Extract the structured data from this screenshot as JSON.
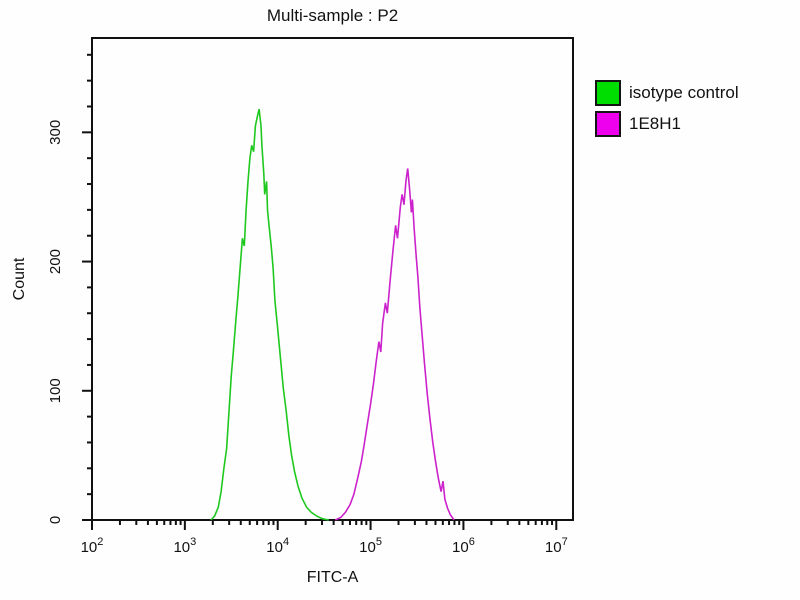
{
  "title": "Multi-sample : P2",
  "legend": {
    "items": [
      {
        "label": "isotype control",
        "color": "#00dd00"
      },
      {
        "label": "1E8H1",
        "color": "#ee00ee"
      }
    ]
  },
  "chart_data": {
    "type": "line",
    "subtype": "flow-cytometry-histogram-overlay",
    "title": "Multi-sample : P2",
    "xlabel": "FITC-A",
    "ylabel": "Count",
    "x_scale": "log10",
    "xlim_log10": [
      2,
      7.18
    ],
    "ylim": [
      0,
      373
    ],
    "x_major_tick_exponents": [
      2,
      3,
      4,
      5,
      6,
      7
    ],
    "y_major_ticks": [
      0,
      100,
      200,
      300
    ],
    "y_minor_step": 20,
    "grid": false,
    "legend_position": "outside-upper-right",
    "axis_color": "#111111",
    "series": [
      {
        "name": "isotype control",
        "color": "#1fc81f",
        "peak_x_approx": 6300,
        "peak_count_approx": 318,
        "points_log10x_count": [
          [
            3.28,
            0
          ],
          [
            3.32,
            3
          ],
          [
            3.36,
            10
          ],
          [
            3.39,
            22
          ],
          [
            3.42,
            40
          ],
          [
            3.45,
            55
          ],
          [
            3.47,
            78
          ],
          [
            3.5,
            112
          ],
          [
            3.52,
            128
          ],
          [
            3.55,
            155
          ],
          [
            3.57,
            172
          ],
          [
            3.6,
            200
          ],
          [
            3.62,
            218
          ],
          [
            3.64,
            212
          ],
          [
            3.66,
            240
          ],
          [
            3.68,
            262
          ],
          [
            3.7,
            280
          ],
          [
            3.72,
            290
          ],
          [
            3.74,
            285
          ],
          [
            3.76,
            305
          ],
          [
            3.78,
            312
          ],
          [
            3.8,
            318
          ],
          [
            3.82,
            305
          ],
          [
            3.83,
            290
          ],
          [
            3.85,
            268
          ],
          [
            3.86,
            252
          ],
          [
            3.88,
            262
          ],
          [
            3.89,
            240
          ],
          [
            3.91,
            225
          ],
          [
            3.93,
            212
          ],
          [
            3.95,
            195
          ],
          [
            3.97,
            170
          ],
          [
            4.0,
            148
          ],
          [
            4.03,
            125
          ],
          [
            4.06,
            102
          ],
          [
            4.09,
            85
          ],
          [
            4.12,
            65
          ],
          [
            4.15,
            50
          ],
          [
            4.18,
            38
          ],
          [
            4.22,
            26
          ],
          [
            4.26,
            17
          ],
          [
            4.31,
            10
          ],
          [
            4.36,
            6
          ],
          [
            4.42,
            3
          ],
          [
            4.48,
            1
          ],
          [
            4.55,
            0
          ]
        ]
      },
      {
        "name": "1E8H1",
        "color": "#cc22cc",
        "peak_x_approx": 250000,
        "peak_count_approx": 272,
        "points_log10x_count": [
          [
            4.62,
            0
          ],
          [
            4.68,
            2
          ],
          [
            4.73,
            6
          ],
          [
            4.78,
            12
          ],
          [
            4.82,
            20
          ],
          [
            4.86,
            32
          ],
          [
            4.9,
            45
          ],
          [
            4.93,
            58
          ],
          [
            4.96,
            72
          ],
          [
            5.0,
            90
          ],
          [
            5.03,
            105
          ],
          [
            5.06,
            122
          ],
          [
            5.09,
            138
          ],
          [
            5.11,
            130
          ],
          [
            5.13,
            152
          ],
          [
            5.16,
            168
          ],
          [
            5.18,
            160
          ],
          [
            5.21,
            185
          ],
          [
            5.24,
            208
          ],
          [
            5.27,
            228
          ],
          [
            5.29,
            218
          ],
          [
            5.32,
            242
          ],
          [
            5.34,
            252
          ],
          [
            5.36,
            244
          ],
          [
            5.38,
            262
          ],
          [
            5.4,
            272
          ],
          [
            5.42,
            256
          ],
          [
            5.44,
            238
          ],
          [
            5.45,
            248
          ],
          [
            5.47,
            225
          ],
          [
            5.49,
            205
          ],
          [
            5.51,
            188
          ],
          [
            5.53,
            165
          ],
          [
            5.55,
            148
          ],
          [
            5.58,
            122
          ],
          [
            5.61,
            98
          ],
          [
            5.64,
            78
          ],
          [
            5.67,
            60
          ],
          [
            5.7,
            45
          ],
          [
            5.73,
            32
          ],
          [
            5.76,
            22
          ],
          [
            5.78,
            30
          ],
          [
            5.8,
            16
          ],
          [
            5.83,
            9
          ],
          [
            5.86,
            4
          ],
          [
            5.9,
            0
          ]
        ]
      }
    ]
  }
}
